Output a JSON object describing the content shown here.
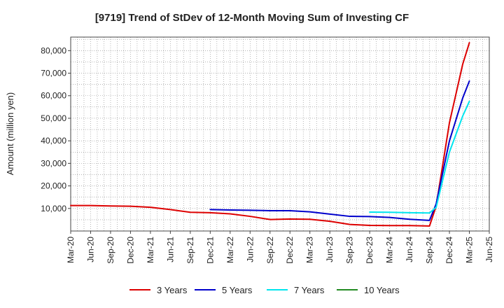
{
  "chart_data": {
    "type": "line",
    "title": "[9719]  Trend of StDev of 12-Month Moving Sum of Investing CF",
    "xlabel": "",
    "ylabel": "Amount (million yen)",
    "x_ticks": [
      "Mar-20",
      "Jun-20",
      "Sep-20",
      "Dec-20",
      "Mar-21",
      "Jun-21",
      "Sep-21",
      "Dec-21",
      "Mar-22",
      "Jun-22",
      "Sep-22",
      "Dec-22",
      "Mar-23",
      "Jun-23",
      "Sep-23",
      "Dec-23",
      "Mar-24",
      "Jun-24",
      "Sep-24",
      "Dec-24",
      "Mar-25",
      "Jun-25"
    ],
    "y_ticks": [
      "10,000",
      "20,000",
      "30,000",
      "40,000",
      "50,000",
      "60,000",
      "70,000",
      "80,000"
    ],
    "y_tick_values": [
      10000,
      20000,
      30000,
      40000,
      50000,
      60000,
      70000,
      80000
    ],
    "ylim": [
      0,
      86000
    ],
    "grid": true,
    "legend_position": "bottom",
    "series": [
      {
        "name": "3 Years",
        "color": "#dd0000",
        "points": [
          [
            "Mar-20",
            11300
          ],
          [
            "Jun-20",
            11300
          ],
          [
            "Sep-20",
            11100
          ],
          [
            "Dec-20",
            11000
          ],
          [
            "Mar-21",
            10500
          ],
          [
            "Jun-21",
            9500
          ],
          [
            "Sep-21",
            8300
          ],
          [
            "Dec-21",
            8100
          ],
          [
            "Mar-22",
            7600
          ],
          [
            "Jun-22",
            6500
          ],
          [
            "Sep-22",
            5100
          ],
          [
            "Dec-22",
            5300
          ],
          [
            "Mar-23",
            5200
          ],
          [
            "Jun-23",
            4300
          ],
          [
            "Sep-23",
            2900
          ],
          [
            "Dec-23",
            2500
          ],
          [
            "Mar-24",
            2400
          ],
          [
            "Jun-24",
            2400
          ],
          [
            "Sep-24",
            2200
          ],
          [
            "Oct-24",
            11000
          ],
          [
            "Dec-24",
            48000
          ],
          [
            "Feb-25",
            74000
          ],
          [
            "Mar-25",
            83500
          ]
        ]
      },
      {
        "name": "5 Years",
        "color": "#0000cc",
        "points": [
          [
            "Dec-21",
            9500
          ],
          [
            "Mar-22",
            9300
          ],
          [
            "Jun-22",
            9200
          ],
          [
            "Sep-22",
            9000
          ],
          [
            "Dec-22",
            9000
          ],
          [
            "Mar-23",
            8500
          ],
          [
            "Jun-23",
            7500
          ],
          [
            "Sep-23",
            6500
          ],
          [
            "Dec-23",
            6400
          ],
          [
            "Mar-24",
            6000
          ],
          [
            "Jun-24",
            5200
          ],
          [
            "Sep-24",
            4700
          ],
          [
            "Oct-24",
            12000
          ],
          [
            "Dec-24",
            40000
          ],
          [
            "Feb-25",
            59000
          ],
          [
            "Mar-25",
            66500
          ]
        ]
      },
      {
        "name": "7 Years",
        "color": "#00e5ee",
        "points": [
          [
            "Dec-23",
            8400
          ],
          [
            "Mar-24",
            8300
          ],
          [
            "Jun-24",
            8100
          ],
          [
            "Sep-24",
            8000
          ],
          [
            "Oct-24",
            10500
          ],
          [
            "Dec-24",
            35000
          ],
          [
            "Feb-25",
            51000
          ],
          [
            "Mar-25",
            57500
          ]
        ]
      },
      {
        "name": "10 Years",
        "color": "#228b22",
        "points": []
      }
    ]
  }
}
